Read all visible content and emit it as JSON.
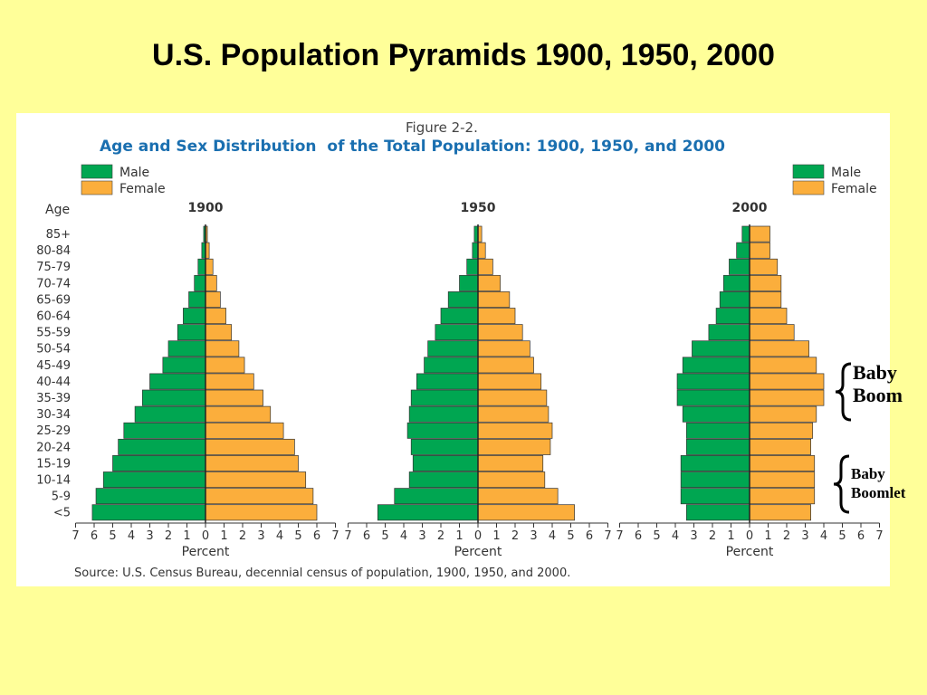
{
  "slide": {
    "title": "U.S. Population Pyramids 1900, 1950, 2000"
  },
  "annotations": {
    "baby_boom": [
      "Baby",
      "Boom"
    ],
    "baby_boomlet": [
      "Baby",
      "Boomlet"
    ]
  },
  "chart_data": {
    "type": "bar",
    "figure_label": "Figure 2-2.",
    "title_part1": "Age and Sex Distribution",
    "title_part2": "of the Total Population:  1900, 1950, and 2000",
    "legend": [
      {
        "name": "Male",
        "color": "#00a651"
      },
      {
        "name": "Female",
        "color": "#fbae3c"
      }
    ],
    "age_label": "Age",
    "xlabel": "Percent",
    "xlim": [
      -7,
      7
    ],
    "tick_labels": [
      "7",
      "6",
      "5",
      "4",
      "3",
      "2",
      "1",
      "0",
      "1",
      "2",
      "3",
      "4",
      "5",
      "6",
      "7"
    ],
    "categories": [
      "85+",
      "80-84",
      "75-79",
      "70-74",
      "65-69",
      "60-64",
      "55-59",
      "50-54",
      "45-49",
      "40-44",
      "35-39",
      "30-34",
      "25-29",
      "20-24",
      "15-19",
      "10-14",
      "5-9",
      "<5"
    ],
    "pyramids": [
      {
        "year": "1900",
        "male": [
          0.1,
          0.2,
          0.4,
          0.6,
          0.9,
          1.2,
          1.5,
          2.0,
          2.3,
          3.0,
          3.4,
          3.8,
          4.4,
          4.7,
          5.0,
          5.5,
          5.9,
          6.1
        ],
        "female": [
          0.1,
          0.2,
          0.4,
          0.6,
          0.8,
          1.1,
          1.4,
          1.8,
          2.1,
          2.6,
          3.1,
          3.5,
          4.2,
          4.8,
          5.0,
          5.4,
          5.8,
          6.0
        ]
      },
      {
        "year": "1950",
        "male": [
          0.2,
          0.3,
          0.6,
          1.0,
          1.6,
          2.0,
          2.3,
          2.7,
          2.9,
          3.3,
          3.6,
          3.7,
          3.8,
          3.6,
          3.5,
          3.7,
          4.5,
          5.4
        ],
        "female": [
          0.2,
          0.4,
          0.8,
          1.2,
          1.7,
          2.0,
          2.4,
          2.8,
          3.0,
          3.4,
          3.7,
          3.8,
          4.0,
          3.9,
          3.5,
          3.6,
          4.3,
          5.2
        ]
      },
      {
        "year": "2000",
        "male": [
          0.4,
          0.7,
          1.1,
          1.4,
          1.6,
          1.8,
          2.2,
          3.1,
          3.6,
          3.9,
          3.9,
          3.6,
          3.4,
          3.4,
          3.7,
          3.7,
          3.7,
          3.4
        ],
        "female": [
          1.1,
          1.1,
          1.5,
          1.7,
          1.7,
          2.0,
          2.4,
          3.2,
          3.6,
          4.0,
          4.0,
          3.6,
          3.4,
          3.3,
          3.5,
          3.5,
          3.5,
          3.3
        ]
      }
    ],
    "source": "Source:  U.S. Census Bureau, decennial census of population, 1900, 1950, and 2000."
  }
}
